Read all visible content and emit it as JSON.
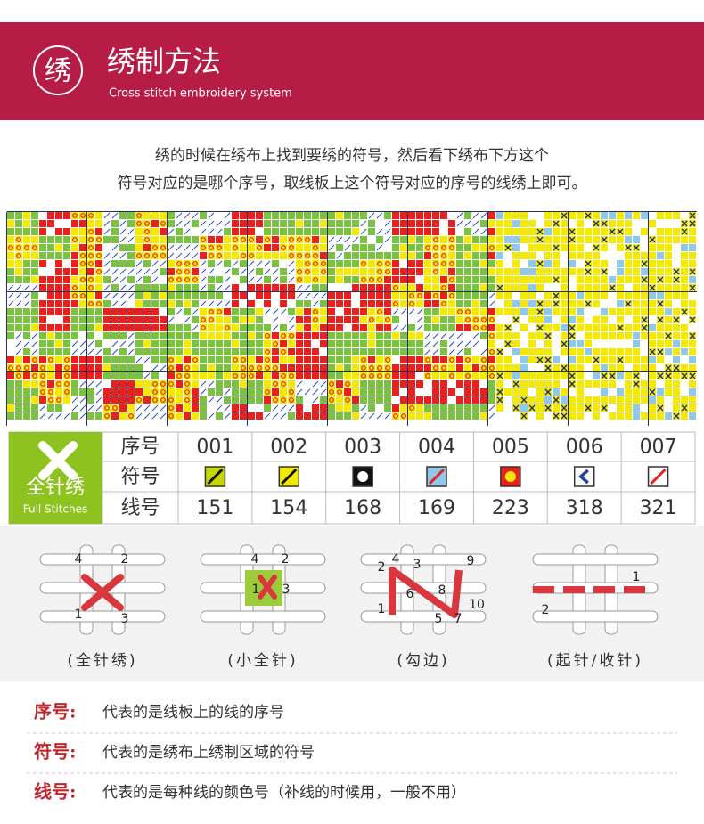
{
  "header": {
    "icon": "绣",
    "title": "绣制方法",
    "subtitle": "Cross stitch embroidery system"
  },
  "intro": [
    "绣的时候在绣布上找到要绣的符号，然后看下绣布下方这个",
    "符号对应的是哪个序号，取线板上这个符号对应的序号的线绣上即可。"
  ],
  "table": {
    "badge": {
      "title": "全针绣",
      "subtitle": "Full Stitches"
    },
    "row_labels": [
      "序号",
      "符号",
      "线号"
    ],
    "columns": [
      {
        "index": "001",
        "number": "151"
      },
      {
        "index": "002",
        "number": "154"
      },
      {
        "index": "003",
        "number": "168"
      },
      {
        "index": "004",
        "number": "169"
      },
      {
        "index": "005",
        "number": "223"
      },
      {
        "index": "006",
        "number": "318"
      },
      {
        "index": "007",
        "number": "321"
      }
    ]
  },
  "diagrams": [
    {
      "label": "(全针绣)",
      "numbers": [
        "4",
        "2",
        "1",
        "3"
      ]
    },
    {
      "label": "(小全针)",
      "numbers": [
        "4",
        "2",
        "1",
        "3"
      ]
    },
    {
      "label": "(勾边)",
      "numbers": [
        "2",
        "4",
        "3",
        "6",
        "8",
        "9",
        "1",
        "5",
        "7",
        "10"
      ]
    },
    {
      "label": "(起针/收针)",
      "numbers": [
        "2",
        "1"
      ]
    }
  ],
  "notes": [
    {
      "term": "序号:",
      "text": "代表的是线板上的线的序号"
    },
    {
      "term": "符号:",
      "text": "代表的是绣布上绣制区域的符号"
    },
    {
      "term": "线号:",
      "text": "代表的是每种线的颜色号（补线的时候用，一般不用）"
    }
  ]
}
